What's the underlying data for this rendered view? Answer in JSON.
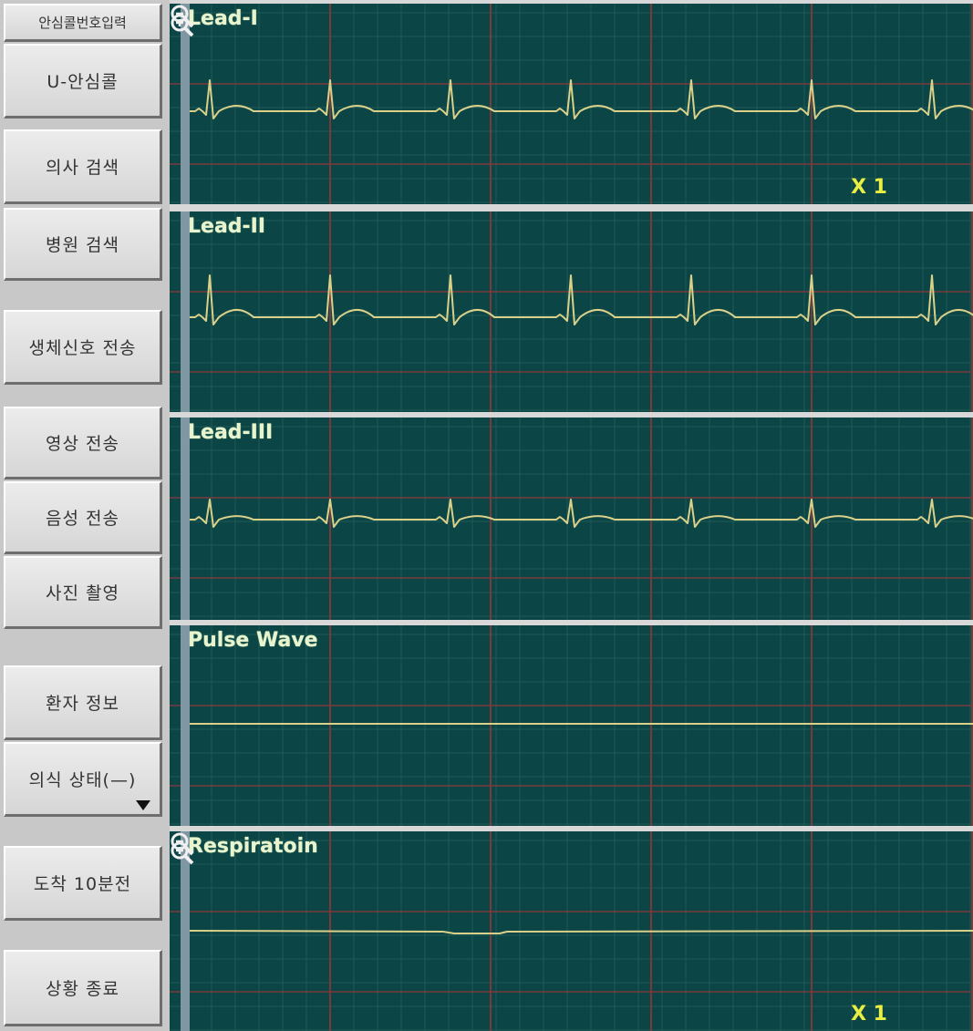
{
  "sidebar": {
    "items": [
      {
        "label": "안심콜번호입력"
      },
      {
        "label": "U-안심콜"
      },
      {
        "label": "의사 검색"
      },
      {
        "label": "병원 검색"
      },
      {
        "label": "생체신호 전송"
      },
      {
        "label": "영상 전송"
      },
      {
        "label": "음성 전송"
      },
      {
        "label": "사진 촬영"
      },
      {
        "label": "환자 정보"
      },
      {
        "label": "의식 상태(—)"
      },
      {
        "label": "도착 10분전"
      },
      {
        "label": "상황 종료"
      }
    ]
  },
  "monitor": {
    "panels": [
      {
        "label": "Lead-I",
        "scale": "X 1",
        "zoom_in_icon": "zoom-in-icon",
        "zoom_out_icon": "zoom-out-icon"
      },
      {
        "label": "Lead-II"
      },
      {
        "label": "Lead-III"
      },
      {
        "label": "Pulse Wave"
      },
      {
        "label": "Respiratoin",
        "scale": "X 1",
        "zoom_in_icon": "zoom-in-icon",
        "zoom_out_icon": "zoom-out-icon"
      }
    ]
  },
  "colors": {
    "panel_bg": "#0c4546",
    "grid_major": "#7b3a3a",
    "grid_minor": "#1f5a57",
    "trace": "#d9d08a",
    "label": "#e8f3d0",
    "scale": "#e9ee43"
  }
}
